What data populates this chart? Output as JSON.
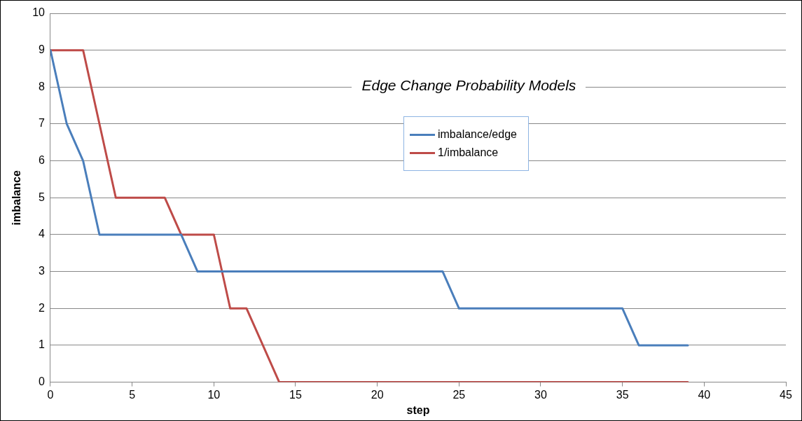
{
  "chart_data": {
    "type": "line",
    "title": "Edge Change Probability Models",
    "xlabel": "step",
    "ylabel": "imbalance",
    "xlim": [
      0,
      45
    ],
    "xticks": [
      0,
      5,
      10,
      15,
      20,
      25,
      30,
      35,
      40,
      45
    ],
    "ylim": [
      0,
      10
    ],
    "yticks": [
      0,
      1,
      2,
      3,
      4,
      5,
      6,
      7,
      8,
      9,
      10
    ],
    "grid": "y",
    "legend": "top",
    "marker": "none",
    "line_style": "solid",
    "series": [
      {
        "name": "imbalance/edge",
        "color": "#4a7ebb",
        "x": [
          0,
          1,
          2,
          3,
          4,
          5,
          6,
          7,
          8,
          9,
          10,
          11,
          12,
          13,
          14,
          15,
          16,
          17,
          18,
          19,
          20,
          21,
          22,
          23,
          24,
          25,
          26,
          27,
          28,
          29,
          30,
          31,
          32,
          33,
          34,
          35,
          36,
          37,
          38,
          39
        ],
        "values": [
          9,
          7,
          6,
          4,
          4,
          4,
          4,
          4,
          4,
          3,
          3,
          3,
          3,
          3,
          3,
          3,
          3,
          3,
          3,
          3,
          3,
          3,
          3,
          3,
          3,
          2,
          2,
          2,
          2,
          2,
          2,
          2,
          2,
          2,
          2,
          2,
          1,
          1,
          1,
          1
        ]
      },
      {
        "name": "1/imbalance",
        "color": "#be4b48",
        "x": [
          0,
          1,
          2,
          3,
          4,
          5,
          6,
          7,
          8,
          9,
          10,
          11,
          12,
          13,
          14,
          15,
          16,
          17,
          18,
          19,
          20,
          21,
          22,
          23,
          24,
          25,
          26,
          27,
          28,
          29,
          30,
          31,
          32,
          33,
          34,
          35,
          36,
          37,
          38,
          39
        ],
        "values": [
          9,
          9,
          9,
          7,
          5,
          5,
          5,
          5,
          4,
          4,
          4,
          2,
          2,
          1,
          0,
          0,
          0,
          0,
          0,
          0,
          0,
          0,
          0,
          0,
          0,
          0,
          0,
          0,
          0,
          0,
          0,
          0,
          0,
          0,
          0,
          0,
          0,
          0,
          0,
          0
        ]
      }
    ]
  }
}
